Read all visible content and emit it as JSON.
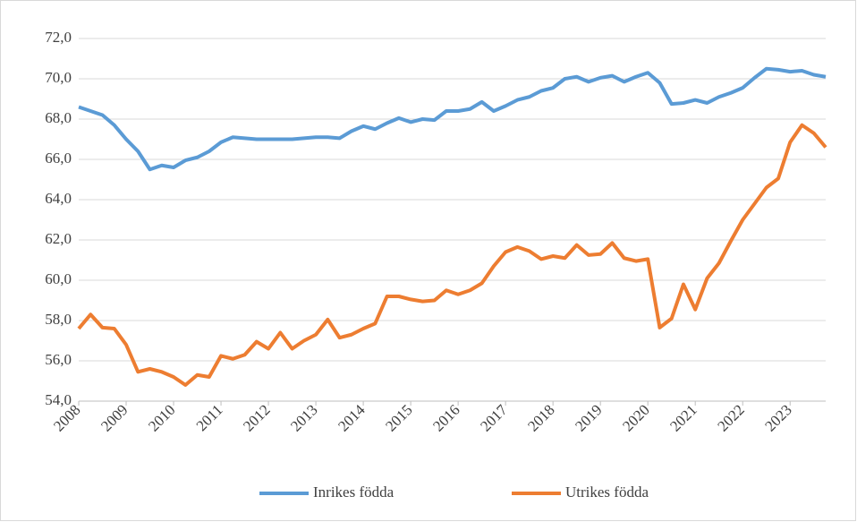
{
  "chart_data": {
    "type": "line",
    "categories": [
      "2008",
      null,
      null,
      null,
      "2009",
      null,
      null,
      null,
      "2010",
      null,
      null,
      null,
      "2011",
      null,
      null,
      null,
      "2012",
      null,
      null,
      null,
      "2013",
      null,
      null,
      null,
      "2014",
      null,
      null,
      null,
      "2015",
      null,
      null,
      null,
      "2016",
      null,
      null,
      null,
      "2017",
      null,
      null,
      null,
      "2018",
      null,
      null,
      null,
      "2019",
      null,
      null,
      null,
      "2020",
      null,
      null,
      null,
      "2021",
      null,
      null,
      null,
      "2022",
      null,
      null,
      null,
      "2023",
      null,
      null,
      null
    ],
    "series": [
      {
        "name": "Inrikes födda",
        "color": "#5b9bd5",
        "values": [
          68.6,
          68.4,
          68.2,
          67.7,
          67.0,
          66.4,
          65.5,
          65.7,
          65.6,
          65.95,
          66.1,
          66.4,
          66.85,
          67.1,
          67.05,
          67.0,
          67.0,
          67.0,
          67.0,
          67.05,
          67.1,
          67.1,
          67.05,
          67.4,
          67.65,
          67.5,
          67.8,
          68.05,
          67.85,
          68.0,
          67.95,
          68.4,
          68.4,
          68.5,
          68.85,
          68.4,
          68.65,
          68.95,
          69.1,
          69.4,
          69.55,
          70.0,
          70.1,
          69.85,
          70.05,
          70.15,
          69.85,
          70.1,
          70.3,
          69.8,
          68.75,
          68.8,
          68.95,
          68.8,
          69.1,
          69.3,
          69.55,
          70.05,
          70.5,
          70.45,
          70.35,
          70.4,
          70.2,
          70.1
        ]
      },
      {
        "name": "Utrikes födda",
        "color": "#ed7d31",
        "values": [
          57.6,
          58.3,
          57.65,
          57.6,
          56.8,
          55.45,
          55.6,
          55.45,
          55.2,
          54.8,
          55.3,
          55.2,
          56.25,
          56.1,
          56.3,
          56.95,
          56.6,
          57.4,
          56.6,
          57.0,
          57.3,
          58.05,
          57.15,
          57.3,
          57.6,
          57.85,
          59.2,
          59.2,
          59.05,
          58.95,
          59.0,
          59.5,
          59.3,
          59.5,
          59.85,
          60.7,
          61.4,
          61.65,
          61.45,
          61.05,
          61.2,
          61.1,
          61.75,
          61.25,
          61.3,
          61.85,
          61.1,
          60.95,
          61.05,
          57.65,
          58.1,
          59.8,
          58.55,
          60.1,
          60.85,
          61.95,
          63.0,
          63.8,
          64.6,
          65.05,
          66.85,
          67.7,
          67.3,
          66.6
        ]
      }
    ],
    "ylim": [
      54,
      72
    ],
    "yticks": [
      {
        "value": 54,
        "label": "54,0"
      },
      {
        "value": 56,
        "label": "56,0"
      },
      {
        "value": 58,
        "label": "58,0"
      },
      {
        "value": 60,
        "label": "60,0"
      },
      {
        "value": 62,
        "label": "62,0"
      },
      {
        "value": 64,
        "label": "64,0"
      },
      {
        "value": 66,
        "label": "66,0"
      },
      {
        "value": 68,
        "label": "68,0"
      },
      {
        "value": 70,
        "label": "70,0"
      },
      {
        "value": 72,
        "label": "72,0"
      }
    ],
    "grid": true,
    "legend": "bottom"
  }
}
